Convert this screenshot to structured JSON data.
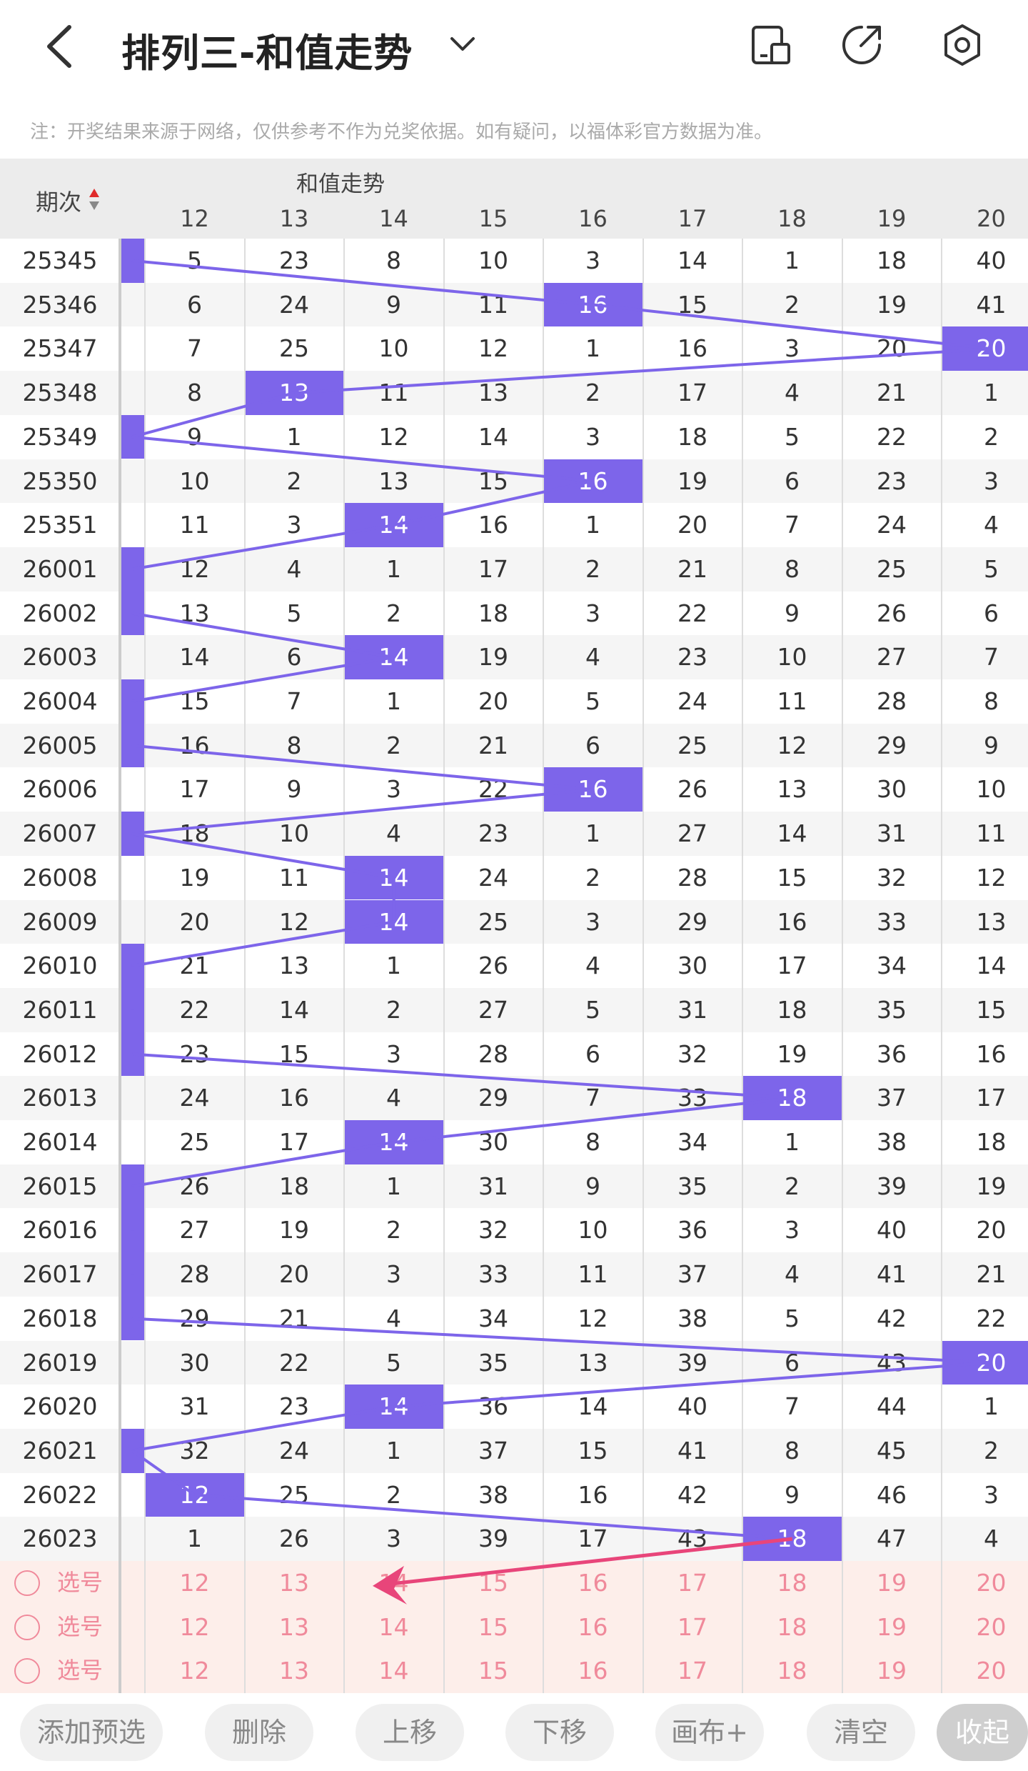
{
  "header": {
    "title": "排列三-和值走势"
  },
  "note": "注：开奖结果来源于网络，仅供参考不作为兑奖依据。如有疑问，以福体彩官方数据为准。",
  "table": {
    "issue_header": "期次",
    "group_header": "和值走势",
    "columns": [
      "12",
      "13",
      "14",
      "15",
      "16",
      "17",
      "18",
      "19",
      "20"
    ],
    "rows": [
      {
        "issue": "25345",
        "cells": [
          "5",
          "23",
          "8",
          "10",
          "3",
          "14",
          "1",
          "18",
          "40"
        ]
      },
      {
        "issue": "25346",
        "cells": [
          "6",
          "24",
          "9",
          "11",
          "16",
          "15",
          "2",
          "19",
          "41"
        ]
      },
      {
        "issue": "25347",
        "cells": [
          "7",
          "25",
          "10",
          "12",
          "1",
          "16",
          "3",
          "20",
          "20"
        ]
      },
      {
        "issue": "25348",
        "cells": [
          "8",
          "13",
          "11",
          "13",
          "2",
          "17",
          "4",
          "21",
          "1"
        ]
      },
      {
        "issue": "25349",
        "cells": [
          "9",
          "1",
          "12",
          "14",
          "3",
          "18",
          "5",
          "22",
          "2"
        ]
      },
      {
        "issue": "25350",
        "cells": [
          "10",
          "2",
          "13",
          "15",
          "16",
          "19",
          "6",
          "23",
          "3"
        ]
      },
      {
        "issue": "25351",
        "cells": [
          "11",
          "3",
          "14",
          "16",
          "1",
          "20",
          "7",
          "24",
          "4"
        ]
      },
      {
        "issue": "26001",
        "cells": [
          "12",
          "4",
          "1",
          "17",
          "2",
          "21",
          "8",
          "25",
          "5"
        ]
      },
      {
        "issue": "26002",
        "cells": [
          "13",
          "5",
          "2",
          "18",
          "3",
          "22",
          "9",
          "26",
          "6"
        ]
      },
      {
        "issue": "26003",
        "cells": [
          "14",
          "6",
          "14",
          "19",
          "4",
          "23",
          "10",
          "27",
          "7"
        ]
      },
      {
        "issue": "26004",
        "cells": [
          "15",
          "7",
          "1",
          "20",
          "5",
          "24",
          "11",
          "28",
          "8"
        ]
      },
      {
        "issue": "26005",
        "cells": [
          "16",
          "8",
          "2",
          "21",
          "6",
          "25",
          "12",
          "29",
          "9"
        ]
      },
      {
        "issue": "26006",
        "cells": [
          "17",
          "9",
          "3",
          "22",
          "16",
          "26",
          "13",
          "30",
          "10"
        ]
      },
      {
        "issue": "26007",
        "cells": [
          "18",
          "10",
          "4",
          "23",
          "1",
          "27",
          "14",
          "31",
          "11"
        ]
      },
      {
        "issue": "26008",
        "cells": [
          "19",
          "11",
          "14",
          "24",
          "2",
          "28",
          "15",
          "32",
          "12"
        ]
      },
      {
        "issue": "26009",
        "cells": [
          "20",
          "12",
          "14",
          "25",
          "3",
          "29",
          "16",
          "33",
          "13"
        ]
      },
      {
        "issue": "26010",
        "cells": [
          "21",
          "13",
          "1",
          "26",
          "4",
          "30",
          "17",
          "34",
          "14"
        ]
      },
      {
        "issue": "26011",
        "cells": [
          "22",
          "14",
          "2",
          "27",
          "5",
          "31",
          "18",
          "35",
          "15"
        ]
      },
      {
        "issue": "26012",
        "cells": [
          "23",
          "15",
          "3",
          "28",
          "6",
          "32",
          "19",
          "36",
          "16"
        ]
      },
      {
        "issue": "26013",
        "cells": [
          "24",
          "16",
          "4",
          "29",
          "7",
          "33",
          "18",
          "37",
          "17"
        ]
      },
      {
        "issue": "26014",
        "cells": [
          "25",
          "17",
          "14",
          "30",
          "8",
          "34",
          "1",
          "38",
          "18"
        ]
      },
      {
        "issue": "26015",
        "cells": [
          "26",
          "18",
          "1",
          "31",
          "9",
          "35",
          "2",
          "39",
          "19"
        ]
      },
      {
        "issue": "26016",
        "cells": [
          "27",
          "19",
          "2",
          "32",
          "10",
          "36",
          "3",
          "40",
          "20"
        ]
      },
      {
        "issue": "26017",
        "cells": [
          "28",
          "20",
          "3",
          "33",
          "11",
          "37",
          "4",
          "41",
          "21"
        ]
      },
      {
        "issue": "26018",
        "cells": [
          "29",
          "21",
          "4",
          "34",
          "12",
          "38",
          "5",
          "42",
          "22"
        ]
      },
      {
        "issue": "26019",
        "cells": [
          "30",
          "22",
          "5",
          "35",
          "13",
          "39",
          "6",
          "43",
          "20"
        ]
      },
      {
        "issue": "26020",
        "cells": [
          "31",
          "23",
          "14",
          "36",
          "14",
          "40",
          "7",
          "44",
          "1"
        ]
      },
      {
        "issue": "26021",
        "cells": [
          "32",
          "24",
          "1",
          "37",
          "15",
          "41",
          "8",
          "45",
          "2"
        ]
      },
      {
        "issue": "26022",
        "cells": [
          "12",
          "25",
          "2",
          "38",
          "16",
          "42",
          "9",
          "46",
          "3"
        ]
      },
      {
        "issue": "26023",
        "cells": [
          "1",
          "26",
          "3",
          "39",
          "17",
          "43",
          "18",
          "47",
          "4"
        ]
      }
    ],
    "hits": [
      -1,
      4,
      8,
      1,
      -1,
      4,
      2,
      -1,
      -1,
      2,
      -1,
      -1,
      4,
      -1,
      2,
      2,
      -1,
      -1,
      -1,
      6,
      2,
      -1,
      -1,
      -1,
      -1,
      8,
      2,
      -1,
      0,
      6
    ],
    "pick_label": "选号"
  },
  "bottom_buttons": [
    "添加预选",
    "删除",
    "上移",
    "下移",
    "画布+",
    "清空",
    "收起"
  ],
  "colors": {
    "accent": "#7d65ea",
    "arrow": "#e8457a",
    "pick_text": "#f08a9b"
  }
}
